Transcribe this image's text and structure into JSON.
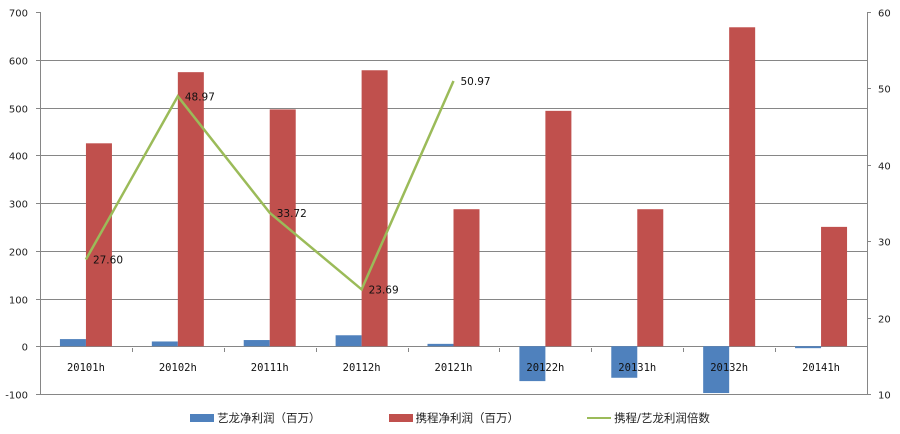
{
  "chart_data": {
    "type": "bar+line",
    "title": "",
    "categories": [
      "20101h",
      "20102h",
      "20111h",
      "20112h",
      "20121h",
      "20122h",
      "20131h",
      "20132h",
      "20141h"
    ],
    "series": [
      {
        "name": "艺龙净利润（百万）",
        "type": "bar",
        "axis": "left",
        "color": "#4F81BD",
        "values": [
          15,
          10,
          13,
          23,
          5,
          -73,
          -66,
          -98,
          -4
        ]
      },
      {
        "name": "携程净利润（百万）",
        "type": "bar",
        "axis": "left",
        "color": "#C0504D",
        "values": [
          425,
          574,
          496,
          578,
          287,
          493,
          287,
          668,
          250
        ]
      },
      {
        "name": "携程/艺龙利润倍数",
        "type": "line",
        "axis": "right",
        "color": "#9BBB59",
        "values": [
          27.6,
          48.97,
          33.72,
          23.69,
          50.97,
          null,
          null,
          null,
          null
        ],
        "data_labels": [
          "27.60",
          "48.97",
          "33.72",
          "23.69",
          "50.97"
        ]
      }
    ],
    "left_axis": {
      "min": -100,
      "max": 700,
      "step": 100,
      "ticks": [
        "700",
        "600",
        "500",
        "400",
        "300",
        "200",
        "100",
        "0",
        "-100"
      ]
    },
    "right_axis": {
      "min": 10,
      "max": 60,
      "step": 10,
      "ticks": [
        "60",
        "50",
        "40",
        "30",
        "20",
        "10"
      ]
    },
    "xlabel": "",
    "ylabel": "",
    "grid": true,
    "legend_position": "bottom"
  },
  "legend": {
    "items": [
      {
        "label": "艺龙净利润（百万）",
        "color": "#4F81BD",
        "kind": "bar"
      },
      {
        "label": "携程净利润（百万）",
        "color": "#C0504D",
        "kind": "bar"
      },
      {
        "label": "携程/艺龙利润倍数",
        "color": "#9BBB59",
        "kind": "line"
      }
    ]
  }
}
